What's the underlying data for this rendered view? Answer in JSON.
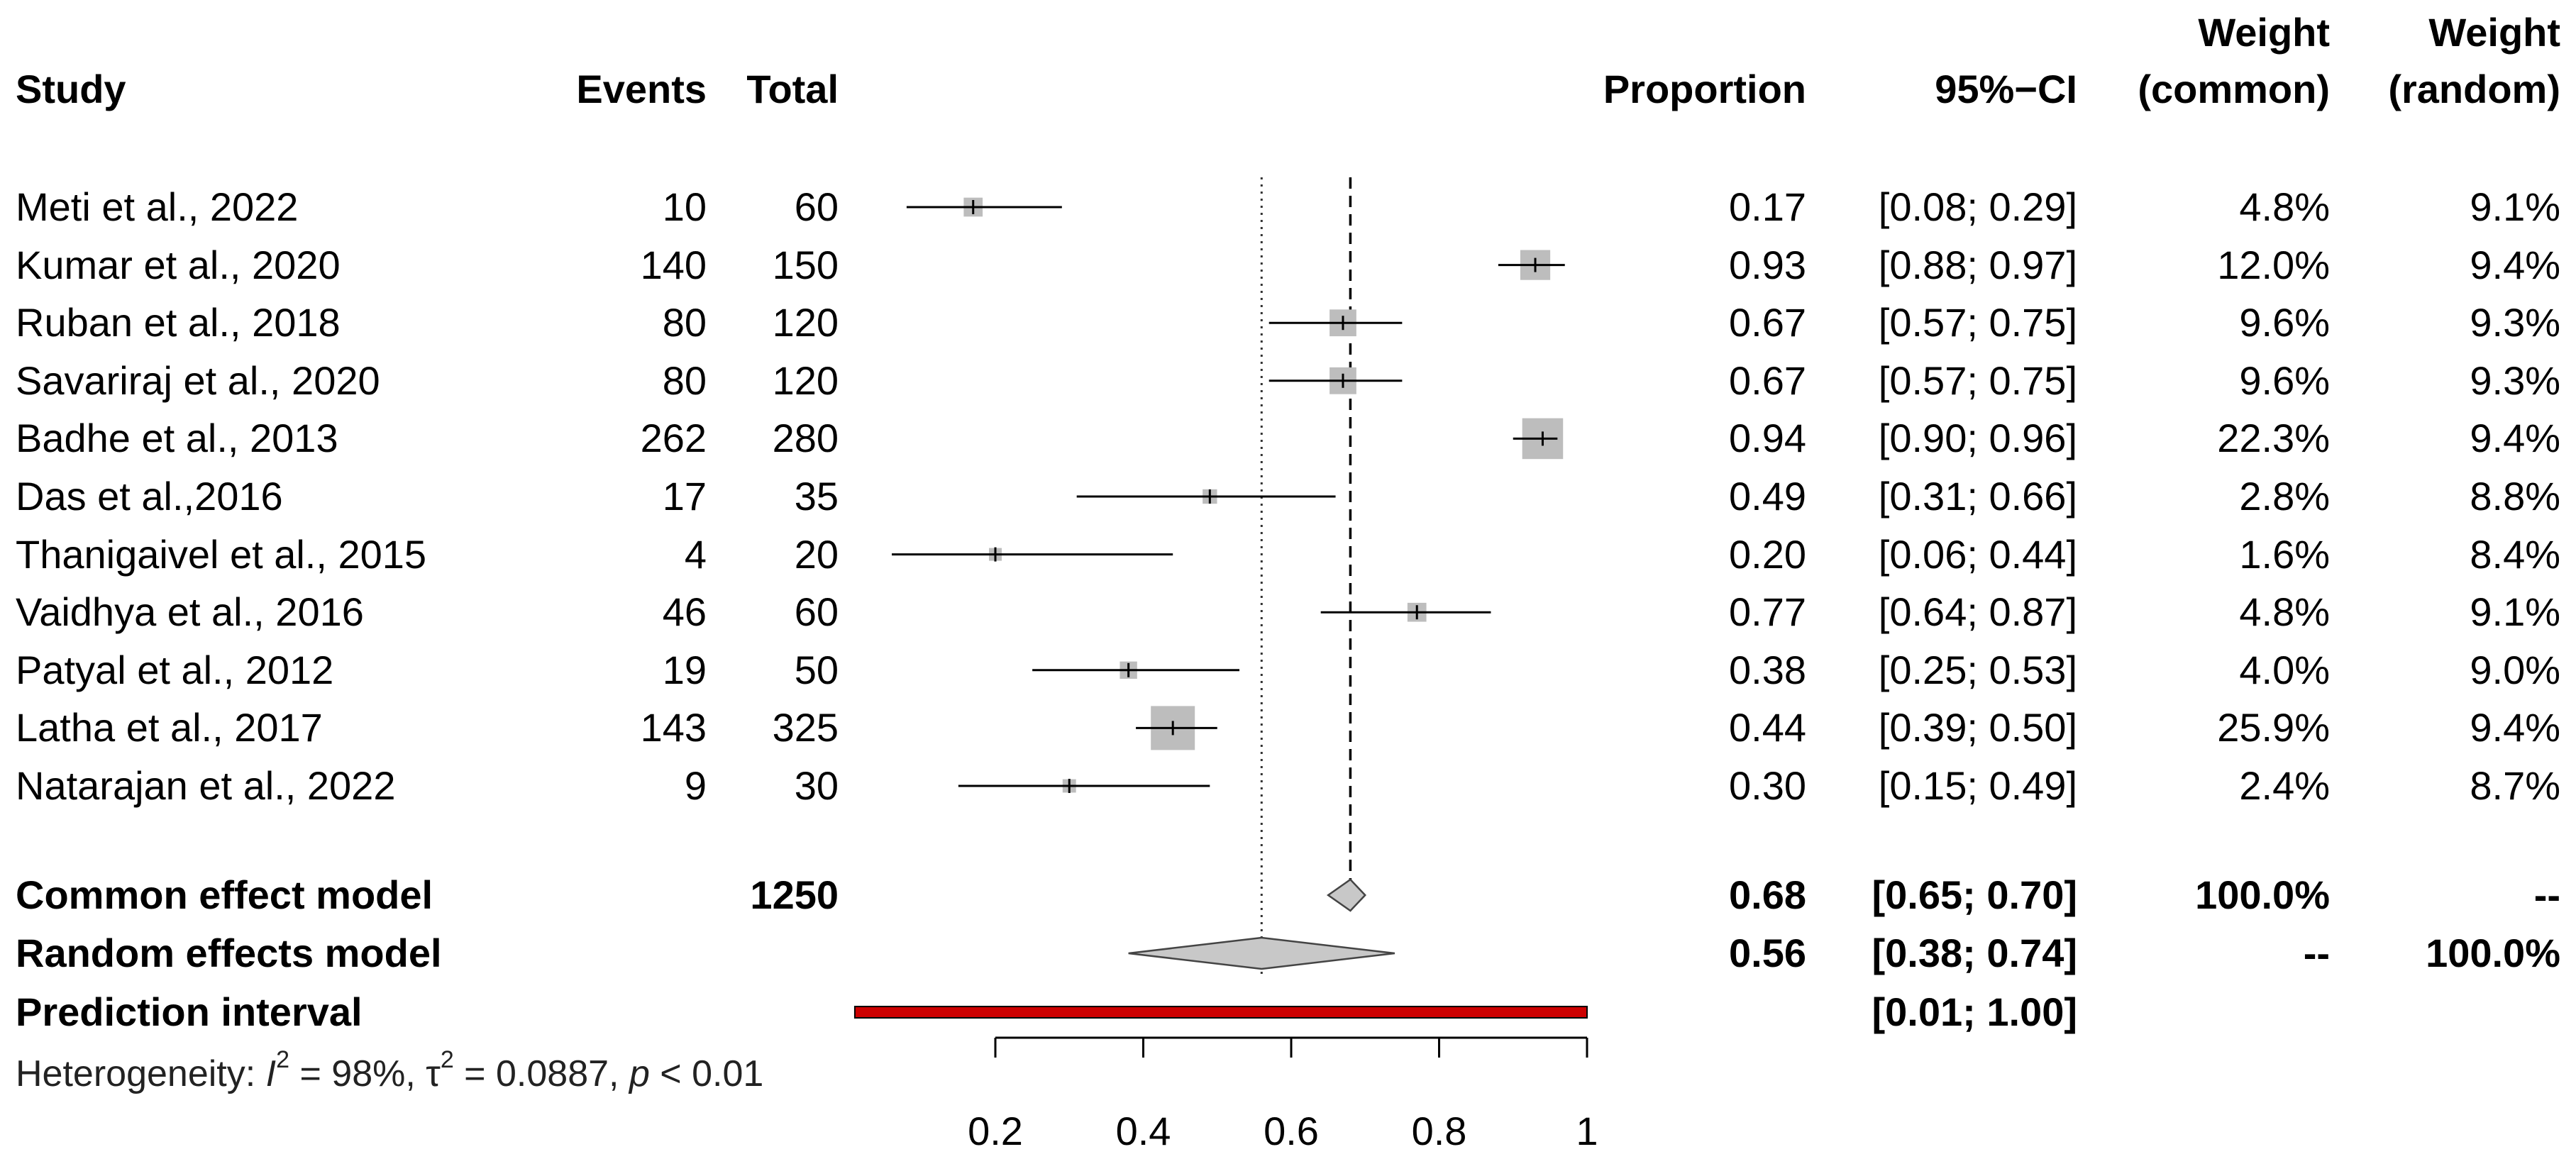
{
  "headers": {
    "study": "Study",
    "events": "Events",
    "total": "Total",
    "proportion": "Proportion",
    "ci": "95%−CI",
    "weight_common_1": "Weight",
    "weight_common_2": "(common)",
    "weight_random_1": "Weight",
    "weight_random_2": "(random)"
  },
  "studies": [
    {
      "study": "Meti et al., 2022",
      "events": "10",
      "total": "60",
      "prop_label": "0.17",
      "ci_label": "[0.08; 0.29]",
      "w_common": "4.8%",
      "w_random": "9.1%"
    },
    {
      "study": "Kumar et al., 2020",
      "events": "140",
      "total": "150",
      "prop_label": "0.93",
      "ci_label": "[0.88; 0.97]",
      "w_common": "12.0%",
      "w_random": "9.4%"
    },
    {
      "study": "Ruban et al., 2018",
      "events": "80",
      "total": "120",
      "prop_label": "0.67",
      "ci_label": "[0.57; 0.75]",
      "w_common": "9.6%",
      "w_random": "9.3%"
    },
    {
      "study": "Savariraj et al., 2020",
      "events": "80",
      "total": "120",
      "prop_label": "0.67",
      "ci_label": "[0.57; 0.75]",
      "w_common": "9.6%",
      "w_random": "9.3%"
    },
    {
      "study": "Badhe et al., 2013",
      "events": "262",
      "total": "280",
      "prop_label": "0.94",
      "ci_label": "[0.90; 0.96]",
      "w_common": "22.3%",
      "w_random": "9.4%"
    },
    {
      "study": "Das et al.,2016",
      "events": "17",
      "total": "35",
      "prop_label": "0.49",
      "ci_label": "[0.31; 0.66]",
      "w_common": "2.8%",
      "w_random": "8.8%"
    },
    {
      "study": "Thanigaivel et al., 2015",
      "events": "4",
      "total": "20",
      "prop_label": "0.20",
      "ci_label": "[0.06; 0.44]",
      "w_common": "1.6%",
      "w_random": "8.4%"
    },
    {
      "study": "Vaidhya et al., 2016",
      "events": "46",
      "total": "60",
      "prop_label": "0.77",
      "ci_label": "[0.64; 0.87]",
      "w_common": "4.8%",
      "w_random": "9.1%"
    },
    {
      "study": "Patyal et al., 2012",
      "events": "19",
      "total": "50",
      "prop_label": "0.38",
      "ci_label": "[0.25; 0.53]",
      "w_common": "4.0%",
      "w_random": "9.0%"
    },
    {
      "study": "Latha et al., 2017",
      "events": "143",
      "total": "325",
      "prop_label": "0.44",
      "ci_label": "[0.39; 0.50]",
      "w_common": "25.9%",
      "w_random": "9.4%"
    },
    {
      "study": "Natarajan et al., 2022",
      "events": "9",
      "total": "30",
      "prop_label": "0.30",
      "ci_label": "[0.15; 0.49]",
      "w_common": "2.4%",
      "w_random": "8.7%"
    }
  ],
  "summary": {
    "common": {
      "label": "Common effect model",
      "total": "1250",
      "prop_label": "0.68",
      "ci_label": "[0.65; 0.70]",
      "w_common": "100.0%",
      "w_random": "--"
    },
    "random": {
      "label": "Random effects model",
      "prop_label": "0.56",
      "ci_label": "[0.38; 0.74]",
      "w_common": "--",
      "w_random": "100.0%"
    },
    "prediction": {
      "label": "Prediction interval",
      "ci_label": "[0.01; 1.00]"
    }
  },
  "heterogeneity": {
    "prefix": "Heterogeneity: ",
    "i2_symbol": "I",
    "sq": "2",
    "i2_value": " = 98%, ",
    "tau_symbol": "τ",
    "tau_value": " = 0.0887, ",
    "p_symbol": "p",
    "p_value": " < 0.01"
  },
  "colors": {
    "square": "#bdbdbd",
    "diamond": "#c8c8c8",
    "prediction_fill": "#cc0000",
    "line": "#000000"
  },
  "chart_data": {
    "type": "forest",
    "measure": "Proportion",
    "xlim": [
      0.2,
      1
    ],
    "xticks": [
      0.2,
      0.4,
      0.6,
      0.8,
      1
    ],
    "xtick_labels": [
      "0.2",
      "0.4",
      "0.6",
      "0.8",
      "1"
    ],
    "reference_line": 0.56,
    "common_effect_line": 0.68,
    "studies": [
      {
        "name": "Meti et al., 2022",
        "est": 0.17,
        "lower": 0.08,
        "upper": 0.29,
        "weight_common": 4.8
      },
      {
        "name": "Kumar et al., 2020",
        "est": 0.93,
        "lower": 0.88,
        "upper": 0.97,
        "weight_common": 12.0
      },
      {
        "name": "Ruban et al., 2018",
        "est": 0.67,
        "lower": 0.57,
        "upper": 0.75,
        "weight_common": 9.6
      },
      {
        "name": "Savariraj et al., 2020",
        "est": 0.67,
        "lower": 0.57,
        "upper": 0.75,
        "weight_common": 9.6
      },
      {
        "name": "Badhe et al., 2013",
        "est": 0.94,
        "lower": 0.9,
        "upper": 0.96,
        "weight_common": 22.3
      },
      {
        "name": "Das et al.,2016",
        "est": 0.49,
        "lower": 0.31,
        "upper": 0.66,
        "weight_common": 2.8
      },
      {
        "name": "Thanigaivel et al., 2015",
        "est": 0.2,
        "lower": 0.06,
        "upper": 0.44,
        "weight_common": 1.6
      },
      {
        "name": "Vaidhya et al., 2016",
        "est": 0.77,
        "lower": 0.64,
        "upper": 0.87,
        "weight_common": 4.8
      },
      {
        "name": "Patyal et al., 2012",
        "est": 0.38,
        "lower": 0.25,
        "upper": 0.53,
        "weight_common": 4.0
      },
      {
        "name": "Latha et al., 2017",
        "est": 0.44,
        "lower": 0.39,
        "upper": 0.5,
        "weight_common": 25.9
      },
      {
        "name": "Natarajan et al., 2022",
        "est": 0.3,
        "lower": 0.15,
        "upper": 0.49,
        "weight_common": 2.4
      }
    ],
    "common": {
      "est": 0.68,
      "lower": 0.65,
      "upper": 0.7
    },
    "random": {
      "est": 0.56,
      "lower": 0.38,
      "upper": 0.74
    },
    "prediction": {
      "lower": 0.01,
      "upper": 1.0
    }
  }
}
